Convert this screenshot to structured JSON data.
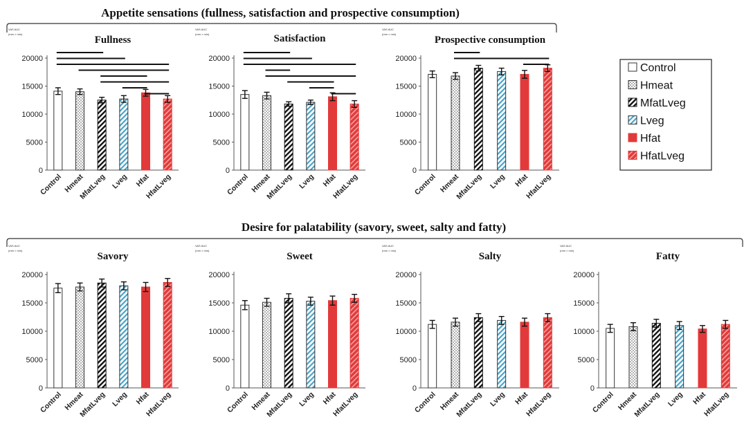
{
  "sections": [
    {
      "title": "Appetite sensations (fullness, satisfaction and prospective consumption)"
    },
    {
      "title": "Desire for palatability (savory, sweet, salty and fatty)"
    }
  ],
  "unit_label": [
    "VAS AUC",
    "(mm × min)"
  ],
  "legend": {
    "position": "right",
    "items": [
      {
        "label": "Control",
        "pattern": "white"
      },
      {
        "label": "Hmeat",
        "pattern": "dots"
      },
      {
        "label": "MfatLveg",
        "pattern": "black-hatch"
      },
      {
        "label": "Lveg",
        "pattern": "blue-hatch"
      },
      {
        "label": "Hfat",
        "pattern": "red"
      },
      {
        "label": "HfatLveg",
        "pattern": "red-hatch"
      }
    ]
  },
  "chart_data": [
    {
      "type": "bar",
      "title": "Fullness",
      "section": 0,
      "categories": [
        "Control",
        "Hmeat",
        "MfatLveg",
        "Lveg",
        "Hfat",
        "HfatLveg"
      ],
      "values": [
        14100,
        14000,
        12500,
        12700,
        13800,
        12700
      ],
      "errors": [
        600,
        500,
        500,
        600,
        600,
        600
      ],
      "ylim": [
        0,
        20000
      ],
      "yticks": [
        0,
        5000,
        10000,
        15000,
        20000
      ],
      "significance": [
        [
          0,
          2
        ],
        [
          0,
          3
        ],
        [
          0,
          5
        ],
        [
          1,
          5
        ],
        [
          2,
          4
        ],
        [
          2,
          5
        ],
        [
          3,
          4
        ],
        [
          4,
          5
        ]
      ]
    },
    {
      "type": "bar",
      "title": "Satisfaction",
      "section": 0,
      "categories": [
        "Control",
        "Hmeat",
        "MfatLveg",
        "Lveg",
        "Hfat",
        "HfatLveg"
      ],
      "values": [
        13500,
        13300,
        11800,
        12100,
        13100,
        11800
      ],
      "errors": [
        700,
        600,
        400,
        400,
        700,
        600
      ],
      "ylim": [
        0,
        20000
      ],
      "yticks": [
        0,
        5000,
        10000,
        15000,
        20000
      ],
      "significance": [
        [
          0,
          2
        ],
        [
          0,
          3
        ],
        [
          0,
          5
        ],
        [
          1,
          2
        ],
        [
          1,
          5
        ],
        [
          2,
          4
        ],
        [
          3,
          4
        ],
        [
          4,
          5
        ]
      ]
    },
    {
      "type": "bar",
      "title": "Prospective consumption",
      "section": 0,
      "categories": [
        "Control",
        "Hmeat",
        "MfatLveg",
        "Lveg",
        "Hfat",
        "HfatLveg"
      ],
      "values": [
        17100,
        16800,
        18200,
        17600,
        17100,
        18200
      ],
      "errors": [
        600,
        600,
        500,
        600,
        700,
        600
      ],
      "ylim": [
        0,
        20000
      ],
      "yticks": [
        0,
        5000,
        10000,
        15000,
        20000
      ],
      "significance": [
        [
          1,
          2
        ],
        [
          1,
          5
        ],
        [
          4,
          5
        ]
      ]
    },
    {
      "type": "bar",
      "title": "Savory",
      "section": 1,
      "categories": [
        "Control",
        "Hmeat",
        "MfatLveg",
        "Lveg",
        "Hfat",
        "HfatLveg"
      ],
      "values": [
        17600,
        17800,
        18500,
        18000,
        17800,
        18600
      ],
      "errors": [
        800,
        700,
        700,
        700,
        800,
        700
      ],
      "ylim": [
        0,
        20000
      ],
      "yticks": [
        0,
        5000,
        10000,
        15000,
        20000
      ],
      "significance": []
    },
    {
      "type": "bar",
      "title": "Sweet",
      "section": 1,
      "categories": [
        "Control",
        "Hmeat",
        "MfatLveg",
        "Lveg",
        "Hfat",
        "HfatLveg"
      ],
      "values": [
        14600,
        15100,
        15800,
        15300,
        15400,
        15800
      ],
      "errors": [
        800,
        700,
        800,
        700,
        800,
        700
      ],
      "ylim": [
        0,
        20000
      ],
      "yticks": [
        0,
        5000,
        10000,
        15000,
        20000
      ],
      "significance": []
    },
    {
      "type": "bar",
      "title": "Salty",
      "section": 1,
      "categories": [
        "Control",
        "Hmeat",
        "MfatLveg",
        "Lveg",
        "Hfat",
        "HfatLveg"
      ],
      "values": [
        11200,
        11600,
        12400,
        11900,
        11600,
        12400
      ],
      "errors": [
        700,
        700,
        700,
        700,
        700,
        700
      ],
      "ylim": [
        0,
        20000
      ],
      "yticks": [
        0,
        5000,
        10000,
        15000,
        20000
      ],
      "significance": []
    },
    {
      "type": "bar",
      "title": "Fatty",
      "section": 1,
      "categories": [
        "Control",
        "Hmeat",
        "MfatLveg",
        "Lveg",
        "Hfat",
        "HfatLveg"
      ],
      "values": [
        10500,
        10800,
        11400,
        11000,
        10400,
        11200
      ],
      "errors": [
        700,
        700,
        700,
        700,
        600,
        700
      ],
      "ylim": [
        0,
        20000
      ],
      "yticks": [
        0,
        5000,
        10000,
        15000,
        20000
      ],
      "significance": []
    }
  ]
}
